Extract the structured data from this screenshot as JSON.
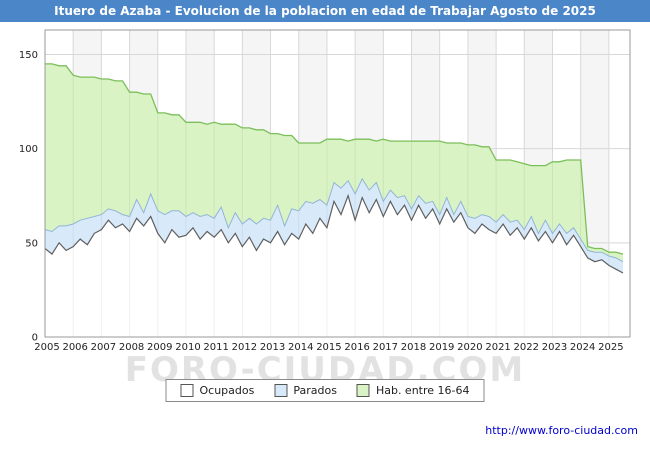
{
  "title": "Ituero de Azaba - Evolucion de la poblacion en edad de Trabajar Agosto de 2025",
  "watermark": "FORO-CIUDAD.COM",
  "footer": {
    "url": "http://www.foro-ciudad.com"
  },
  "colors": {
    "titlebar": "#4a86c8",
    "link": "#0000cc",
    "plot_border": "#9a9a9a",
    "grid": "#d8d8d8",
    "stripe": "#f5f5f5"
  },
  "legend": [
    {
      "label": "Ocupados",
      "color": "#ffffff"
    },
    {
      "label": "Parados",
      "color": "#d8eafa"
    },
    {
      "label": "Hab. entre 16-64",
      "color": "#d9f3c4"
    }
  ],
  "chart_data": {
    "type": "area",
    "title": "Ituero de Azaba - Evolucion de la poblacion en edad de Trabajar Agosto de 2025",
    "xlabel": "",
    "ylabel": "",
    "xlim": [
      2005,
      2025.75
    ],
    "ylim": [
      0,
      163
    ],
    "yticks": [
      0,
      50,
      100,
      150
    ],
    "x_ticks": [
      2005,
      2006,
      2007,
      2008,
      2009,
      2010,
      2011,
      2012,
      2013,
      2014,
      2015,
      2016,
      2017,
      2018,
      2019,
      2020,
      2021,
      2022,
      2023,
      2024,
      2025
    ],
    "legend_position": "bottom",
    "grid": true,
    "x": [
      2005,
      2005.25,
      2005.5,
      2005.75,
      2006,
      2006.25,
      2006.5,
      2006.75,
      2007,
      2007.25,
      2007.5,
      2007.75,
      2008,
      2008.25,
      2008.5,
      2008.75,
      2009,
      2009.25,
      2009.5,
      2009.75,
      2010,
      2010.25,
      2010.5,
      2010.75,
      2011,
      2011.25,
      2011.5,
      2011.75,
      2012,
      2012.25,
      2012.5,
      2012.75,
      2013,
      2013.25,
      2013.5,
      2013.75,
      2014,
      2014.25,
      2014.5,
      2014.75,
      2015,
      2015.25,
      2015.5,
      2015.75,
      2016,
      2016.25,
      2016.5,
      2016.75,
      2017,
      2017.25,
      2017.5,
      2017.75,
      2018,
      2018.25,
      2018.5,
      2018.75,
      2019,
      2019.25,
      2019.5,
      2019.75,
      2020,
      2020.25,
      2020.5,
      2020.75,
      2021,
      2021.25,
      2021.5,
      2021.75,
      2022,
      2022.25,
      2022.5,
      2022.75,
      2023,
      2023.25,
      2023.5,
      2023.75,
      2024,
      2024.25,
      2024.5,
      2024.75,
      2025,
      2025.25,
      2025.5
    ],
    "series": [
      {
        "name": "Hab. entre 16-64",
        "fill": "#d9f3c4",
        "line": "#7cbf5a",
        "values": [
          145,
          145,
          144,
          144,
          139,
          138,
          138,
          138,
          137,
          137,
          136,
          136,
          130,
          130,
          129,
          129,
          119,
          119,
          118,
          118,
          114,
          114,
          114,
          113,
          114,
          113,
          113,
          113,
          111,
          111,
          110,
          110,
          108,
          108,
          107,
          107,
          103,
          103,
          103,
          103,
          105,
          105,
          105,
          104,
          105,
          105,
          105,
          104,
          105,
          104,
          104,
          104,
          104,
          104,
          104,
          104,
          104,
          103,
          103,
          103,
          102,
          102,
          101,
          101,
          94,
          94,
          94,
          93,
          92,
          91,
          91,
          91,
          93,
          93,
          94,
          94,
          94,
          48,
          47,
          47,
          45,
          45,
          44
        ]
      },
      {
        "name": "Parados",
        "fill": "#d8eafa",
        "line": "#92b5d5",
        "stacked_on": "Ocupados",
        "values": [
          10,
          12,
          9,
          13,
          12,
          10,
          14,
          9,
          8,
          6,
          9,
          5,
          8,
          10,
          7,
          12,
          12,
          15,
          10,
          14,
          10,
          8,
          12,
          9,
          10,
          12,
          8,
          11,
          12,
          10,
          14,
          11,
          12,
          14,
          10,
          13,
          15,
          12,
          16,
          10,
          12,
          10,
          14,
          8,
          14,
          10,
          12,
          9,
          8,
          6,
          9,
          5,
          6,
          5,
          8,
          4,
          5,
          6,
          4,
          6,
          6,
          8,
          5,
          7,
          6,
          5,
          7,
          4,
          5,
          6,
          4,
          6,
          5,
          4,
          6,
          4,
          4,
          4,
          5,
          4,
          5,
          6,
          6
        ]
      },
      {
        "name": "Ocupados",
        "fill": "#ffffff",
        "line": "#5f5f5f",
        "values": [
          47,
          44,
          50,
          46,
          48,
          52,
          49,
          55,
          57,
          62,
          58,
          60,
          56,
          63,
          59,
          64,
          55,
          50,
          57,
          53,
          54,
          58,
          52,
          56,
          53,
          57,
          50,
          55,
          48,
          53,
          46,
          52,
          50,
          56,
          49,
          55,
          52,
          60,
          55,
          63,
          58,
          72,
          65,
          75,
          62,
          74,
          66,
          73,
          64,
          72,
          65,
          70,
          62,
          70,
          63,
          68,
          60,
          68,
          61,
          66,
          58,
          55,
          60,
          57,
          55,
          60,
          54,
          58,
          52,
          58,
          51,
          56,
          50,
          56,
          49,
          54,
          48,
          42,
          40,
          41,
          38,
          36,
          34
        ]
      }
    ]
  }
}
